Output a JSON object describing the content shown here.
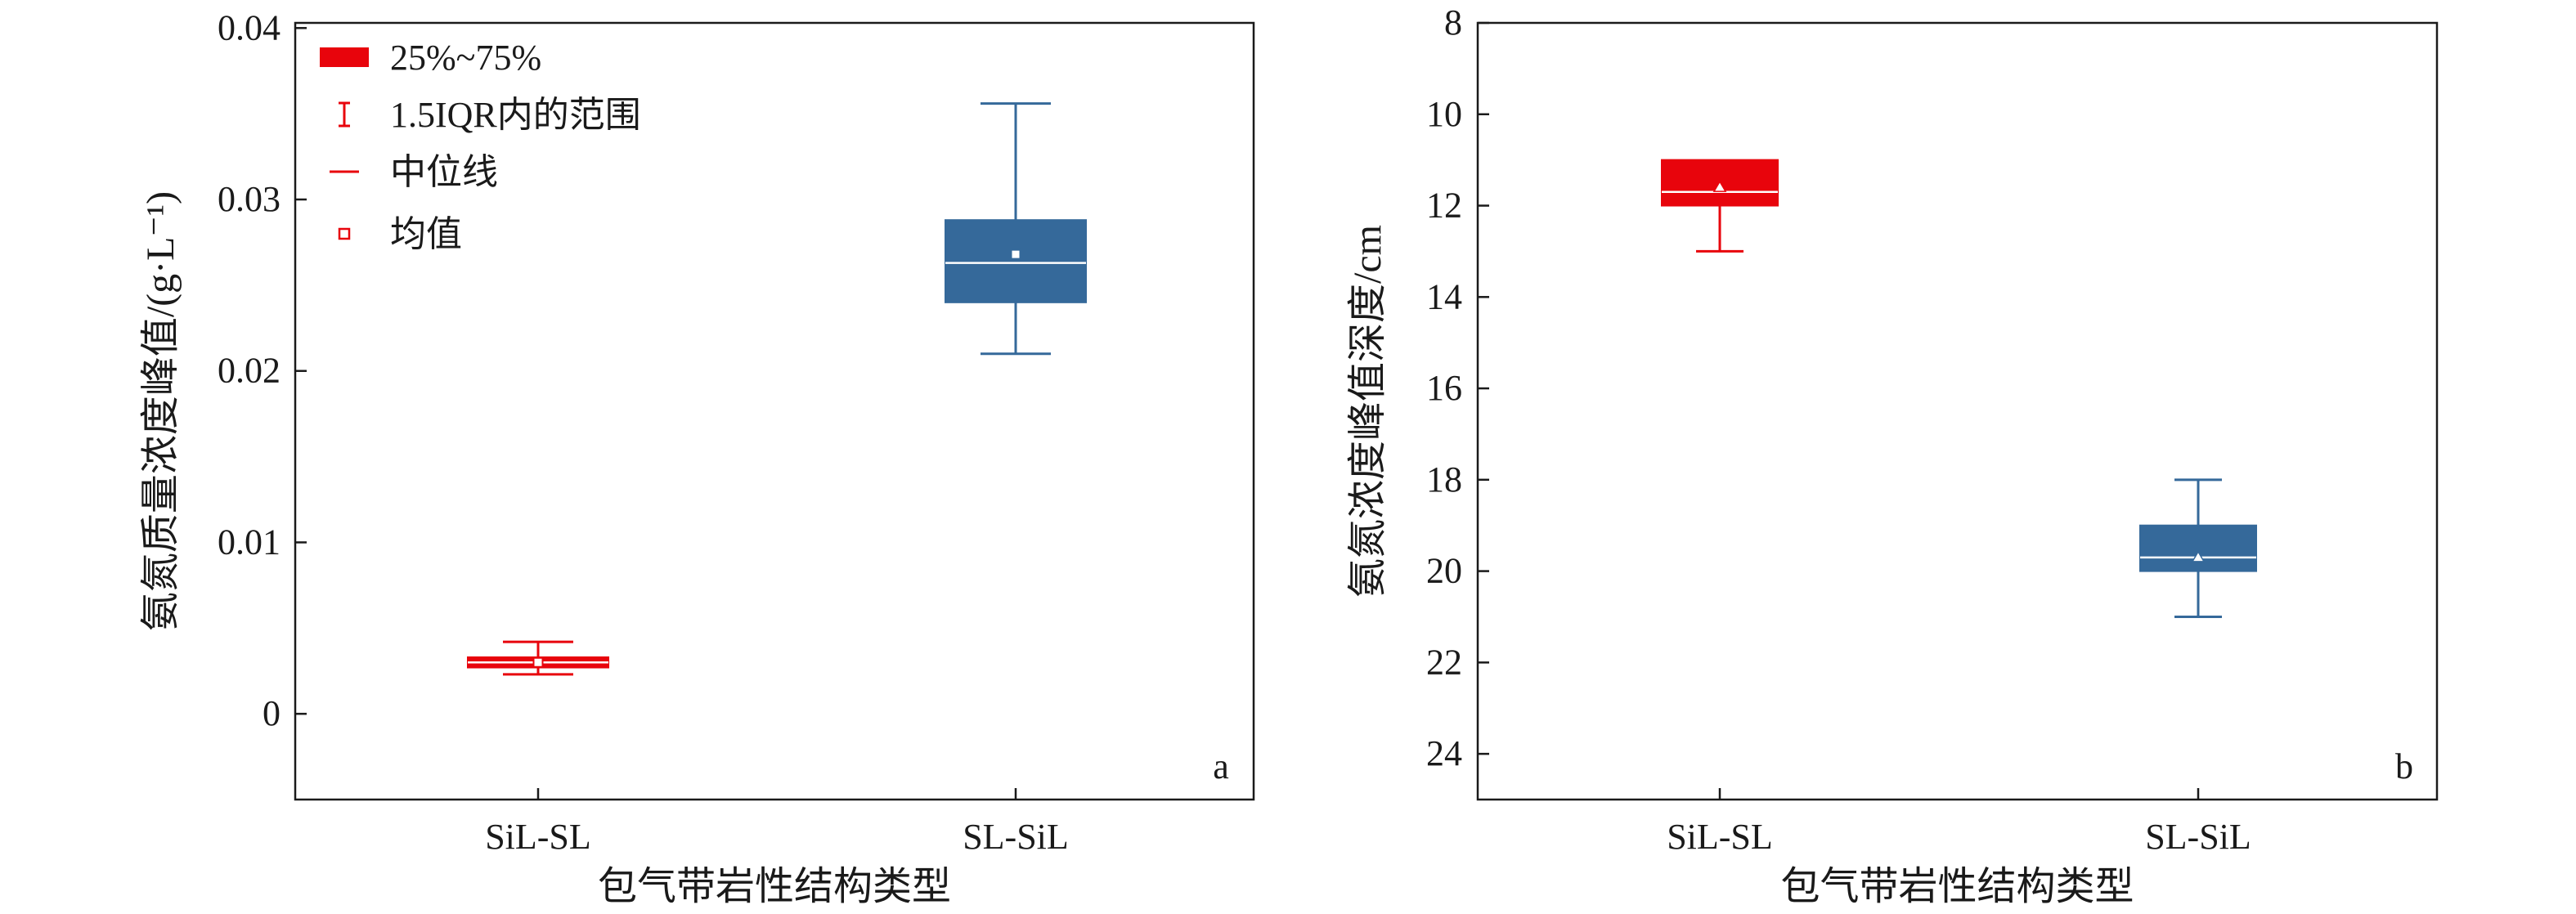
{
  "colors": {
    "red": "#e8040c",
    "blue": "#35699a",
    "axis": "#1a1a1a"
  },
  "chart_data": [
    {
      "type": "box",
      "panel_label": "a",
      "xlabel": "包气带岩性结构类型",
      "ylabel": "氨氮质量浓度峰值/(g·L⁻¹)",
      "ylim": [
        -0.005,
        0.0403
      ],
      "y_inverted": false,
      "yticks": [
        0,
        0.01,
        0.02,
        0.03,
        0.04
      ],
      "ytick_labels": [
        "0",
        "0.01",
        "0.02",
        "0.03",
        "0.04"
      ],
      "categories": [
        "SiL-SL",
        "SL-SiL"
      ],
      "mean_marker": "square",
      "boxes": [
        {
          "category": "SiL-SL",
          "color": "red",
          "whisker_low": 0.0023,
          "q1": 0.0027,
          "median": 0.003,
          "q3": 0.0033,
          "whisker_high": 0.0042,
          "mean": 0.003
        },
        {
          "category": "SL-SiL",
          "color": "blue",
          "whisker_low": 0.021,
          "q1": 0.024,
          "median": 0.0263,
          "q3": 0.0288,
          "whisker_high": 0.0356,
          "mean": 0.0268
        }
      ],
      "legend": {
        "position": "top-left",
        "entries": [
          {
            "key": "box",
            "label": "25%~75%"
          },
          {
            "key": "whisker",
            "label": "1.5IQR内的范围"
          },
          {
            "key": "median",
            "label": "中位线"
          },
          {
            "key": "mean",
            "label": "均值"
          }
        ]
      }
    },
    {
      "type": "box",
      "panel_label": "b",
      "xlabel": "包气带岩性结构类型",
      "ylabel": "氨氮浓度峰值深度/cm",
      "ylim": [
        8,
        25
      ],
      "y_inverted": true,
      "yticks": [
        8,
        10,
        12,
        14,
        16,
        18,
        20,
        22,
        24
      ],
      "ytick_labels": [
        "8",
        "10",
        "12",
        "14",
        "16",
        "18",
        "20",
        "22",
        "24"
      ],
      "categories": [
        "SiL-SL",
        "SL-SiL"
      ],
      "mean_marker": "triangle",
      "boxes": [
        {
          "category": "SiL-SL",
          "color": "red",
          "whisker_low": 11,
          "q1": 11,
          "median": 11.7,
          "q3": 12,
          "whisker_high": 13,
          "mean": 11.6
        },
        {
          "category": "SL-SiL",
          "color": "blue",
          "whisker_low": 18,
          "q1": 19,
          "median": 19.7,
          "q3": 20,
          "whisker_high": 21,
          "mean": 19.7
        }
      ]
    }
  ]
}
